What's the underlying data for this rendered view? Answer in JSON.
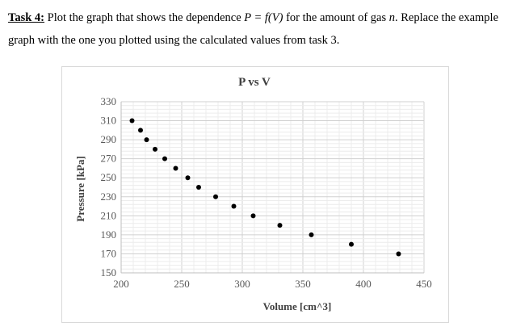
{
  "task": {
    "label": "Task 4:",
    "text_before": " Plot the graph that shows the dependence ",
    "formula": "P = f(V)",
    "text_middle": " for the amount of gas ",
    "variable": "n",
    "text_after": ". Replace the example graph with the one you plotted using the calculated values from task 3."
  },
  "chart_data": {
    "type": "scatter",
    "title": "P vs V",
    "xlabel": "Volume [cm^3]",
    "ylabel": "Pressure [kPa]",
    "xlim": [
      200,
      450
    ],
    "ylim": [
      150,
      330
    ],
    "xticks": [
      200,
      250,
      300,
      350,
      400,
      450
    ],
    "yticks": [
      150,
      170,
      190,
      210,
      230,
      250,
      270,
      290,
      310,
      330
    ],
    "grid": true,
    "marker_color": "#000000",
    "x": [
      209,
      216,
      221,
      228,
      236,
      245,
      255,
      264,
      278,
      293,
      309,
      331,
      357,
      390,
      429
    ],
    "y": [
      310,
      300,
      290,
      280,
      270,
      260,
      250,
      240,
      230,
      220,
      210,
      200,
      190,
      180,
      170
    ]
  }
}
